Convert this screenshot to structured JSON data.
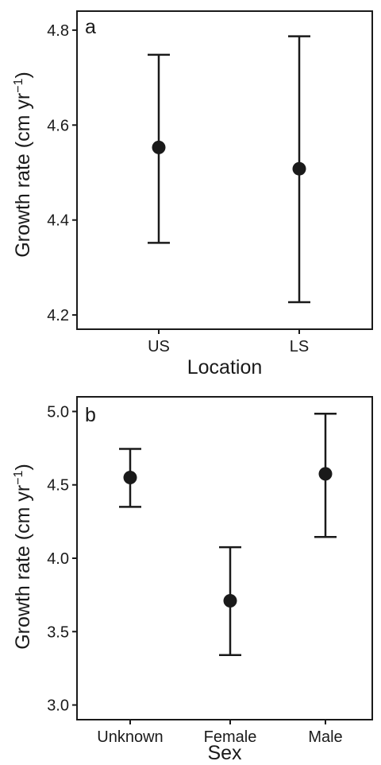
{
  "chart_data": [
    {
      "type": "scatter",
      "panel_label": "a",
      "title": "",
      "xlabel": "Location",
      "ylabel_main": "Growth rate (cm yr",
      "ylabel_sup": "−1",
      "ylabel_close": ")",
      "categories": [
        "US",
        "LS"
      ],
      "values": [
        4.553,
        4.508
      ],
      "lower": [
        4.352,
        4.227
      ],
      "upper": [
        4.748,
        4.787
      ],
      "ylim": [
        4.17,
        4.84
      ],
      "yticks": [
        4.2,
        4.4,
        4.6,
        4.8
      ],
      "ytick_labels": [
        "4.2",
        "4.4",
        "4.6",
        "4.8"
      ],
      "grid": false,
      "legend": false
    },
    {
      "type": "scatter",
      "panel_label": "b",
      "title": "",
      "xlabel": "Sex",
      "ylabel_main": "Growth rate (cm yr",
      "ylabel_sup": "−1",
      "ylabel_close": ")",
      "categories": [
        "Unknown",
        "Female",
        "Male"
      ],
      "values": [
        4.55,
        3.71,
        4.575
      ],
      "lower": [
        4.35,
        3.34,
        4.145
      ],
      "upper": [
        4.745,
        4.075,
        4.985
      ],
      "ylim": [
        2.9,
        5.1
      ],
      "yticks": [
        3.0,
        3.5,
        4.0,
        4.5,
        5.0
      ],
      "ytick_labels": [
        "3.0",
        "3.5",
        "4.0",
        "4.5",
        "5.0"
      ],
      "grid": false,
      "legend": false
    }
  ]
}
